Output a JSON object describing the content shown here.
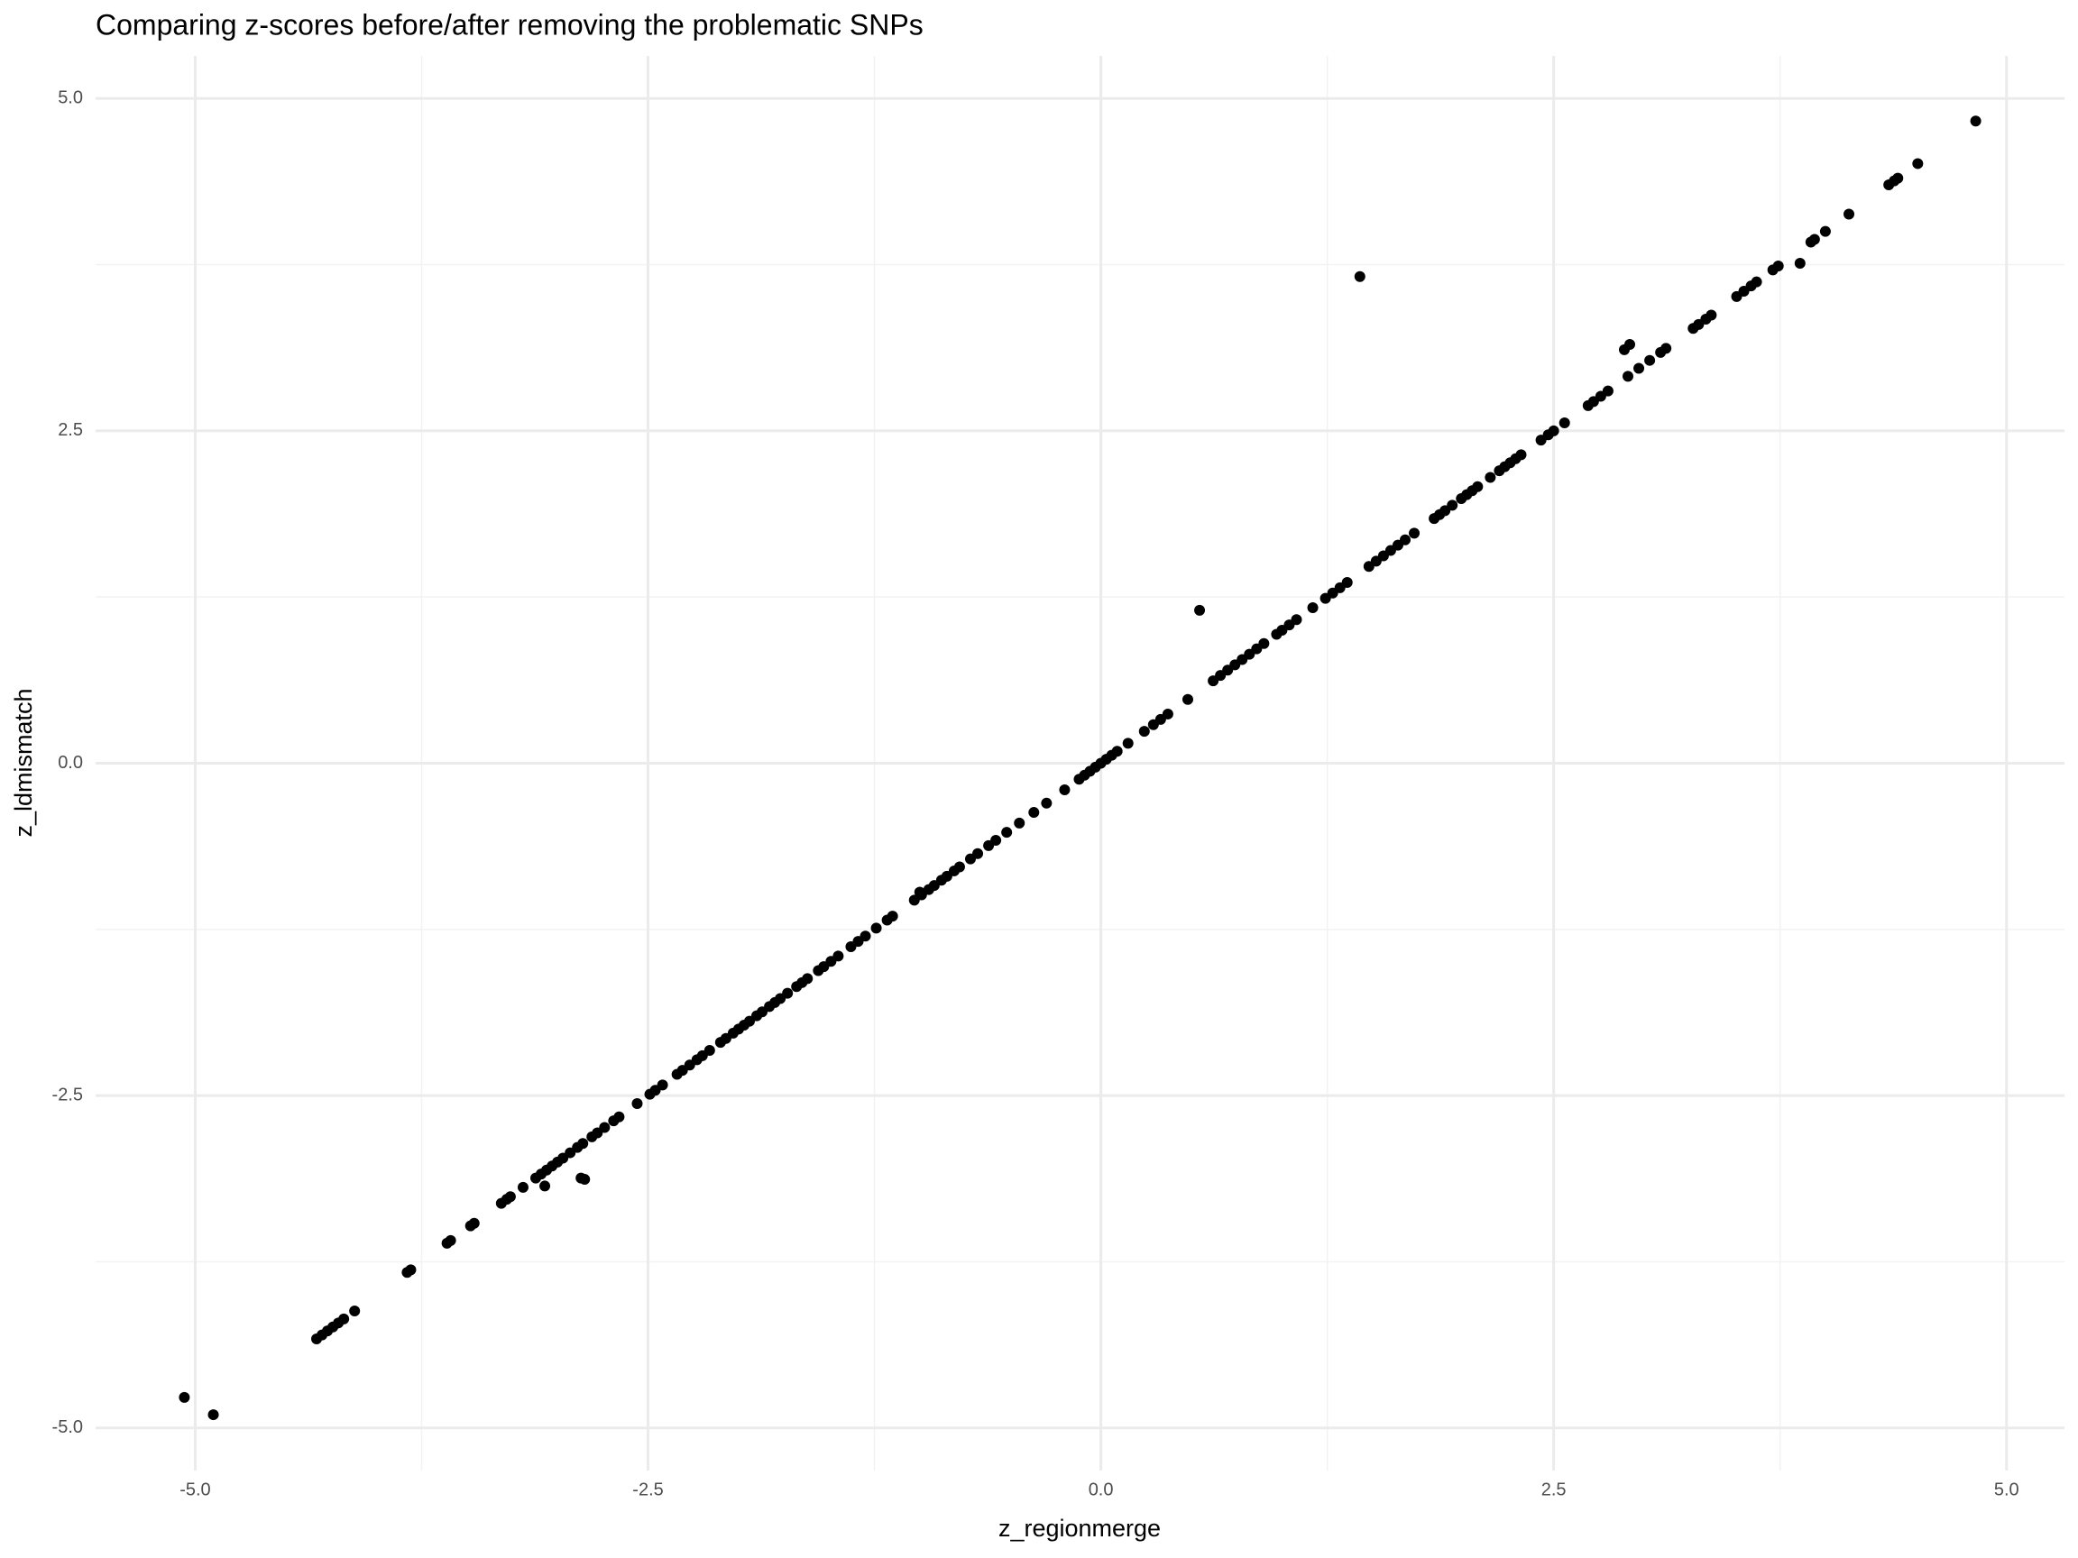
{
  "chart_data": {
    "type": "scatter",
    "title": "Comparing z-scores before/after removing the problematic SNPs",
    "x_label": "z_regionmerge",
    "y_label": "z_ldmismatch",
    "xlim": [
      -5.55,
      5.32
    ],
    "ylim": [
      -5.32,
      5.32
    ],
    "xticks": [
      {
        "value": -5,
        "label": "-5.0"
      },
      -2.5,
      {
        "value": 0,
        "label": "0.0"
      },
      2.5,
      {
        "value": 5,
        "label": "5.0"
      }
    ],
    "yticks": [
      {
        "value": -5,
        "label": "-5.0"
      },
      -2.5,
      {
        "value": 0,
        "label": "0.0"
      },
      2.5,
      {
        "value": 5,
        "label": "5.0"
      }
    ],
    "grid": true,
    "minor_grid": true,
    "color": "#000000",
    "x": [
      -4.33,
      -4.3,
      -4.27,
      -4.24,
      -4.21,
      -4.18,
      -4.12,
      -3.83,
      -3.81,
      -3.61,
      -3.59,
      -3.48,
      -3.46,
      -3.31,
      -3.28,
      -3.26,
      -3.19,
      -3.12,
      -3.09,
      -3.06,
      -3.03,
      -3.0,
      -2.97,
      -2.93,
      -2.89,
      -2.86,
      -2.81,
      -2.78,
      -2.74,
      -2.69,
      -2.66,
      -2.56,
      -2.49,
      -2.46,
      -2.42,
      -2.34,
      -2.31,
      -2.27,
      -2.23,
      -2.2,
      -2.16,
      -2.1,
      -2.07,
      -2.03,
      -2.0,
      -1.97,
      -1.94,
      -1.9,
      -1.87,
      -1.83,
      -1.8,
      -1.77,
      -1.73,
      -1.68,
      -1.65,
      -1.62,
      -1.56,
      -1.53,
      -1.49,
      -1.45,
      -1.38,
      -1.34,
      -1.3,
      -1.24,
      -1.18,
      -1.15,
      -1.03,
      -0.99,
      -0.95,
      -0.92,
      -0.88,
      -0.85,
      -0.81,
      -0.78,
      -0.72,
      -0.68,
      -0.62,
      -0.58,
      -0.52,
      -0.45,
      -0.37,
      -0.3,
      -0.2,
      -0.12,
      -0.09,
      -0.06,
      -0.03,
      0.0,
      0.03,
      0.06,
      0.09,
      0.15,
      0.24,
      0.29,
      0.33,
      0.37,
      0.48,
      0.62,
      0.66,
      0.7,
      0.74,
      0.78,
      0.82,
      0.86,
      0.9,
      0.97,
      1.0,
      1.04,
      1.08,
      1.17,
      1.24,
      1.28,
      1.32,
      1.36,
      1.48,
      1.52,
      1.56,
      1.6,
      1.64,
      1.68,
      1.73,
      1.84,
      1.87,
      1.9,
      1.94,
      1.99,
      2.02,
      2.05,
      2.08,
      2.15,
      2.2,
      2.23,
      2.26,
      2.29,
      2.32,
      2.43,
      2.47,
      2.5,
      2.56,
      2.69,
      2.72,
      2.76,
      2.8,
      2.91,
      2.97,
      3.03,
      3.09,
      3.12,
      3.27,
      3.3,
      3.34,
      3.37,
      3.51,
      3.55,
      3.59,
      3.62,
      3.71,
      3.74,
      3.92,
      3.94,
      4.13,
      4.35,
      4.38,
      4.4,
      4.51,
      4.83,
      -5.06,
      -4.9,
      1.43,
      0.545,
      -2.87,
      -2.85,
      -3.07,
      2.92,
      2.89,
      3.86,
      4.0,
      -1.0
    ],
    "y": [
      -4.33,
      -4.3,
      -4.27,
      -4.24,
      -4.21,
      -4.18,
      -4.12,
      -3.83,
      -3.81,
      -3.61,
      -3.59,
      -3.48,
      -3.46,
      -3.31,
      -3.28,
      -3.26,
      -3.19,
      -3.12,
      -3.09,
      -3.06,
      -3.03,
      -3.0,
      -2.97,
      -2.93,
      -2.89,
      -2.86,
      -2.81,
      -2.78,
      -2.74,
      -2.69,
      -2.66,
      -2.56,
      -2.49,
      -2.46,
      -2.42,
      -2.34,
      -2.31,
      -2.27,
      -2.23,
      -2.2,
      -2.16,
      -2.1,
      -2.07,
      -2.03,
      -2.0,
      -1.97,
      -1.94,
      -1.9,
      -1.87,
      -1.83,
      -1.8,
      -1.77,
      -1.73,
      -1.68,
      -1.65,
      -1.62,
      -1.56,
      -1.53,
      -1.49,
      -1.45,
      -1.38,
      -1.34,
      -1.3,
      -1.24,
      -1.18,
      -1.15,
      -1.03,
      -0.99,
      -0.95,
      -0.92,
      -0.88,
      -0.85,
      -0.81,
      -0.78,
      -0.72,
      -0.68,
      -0.62,
      -0.58,
      -0.52,
      -0.45,
      -0.37,
      -0.3,
      -0.2,
      -0.12,
      -0.09,
      -0.06,
      -0.03,
      0.0,
      0.03,
      0.06,
      0.09,
      0.15,
      0.24,
      0.29,
      0.33,
      0.37,
      0.48,
      0.62,
      0.66,
      0.7,
      0.74,
      0.78,
      0.82,
      0.86,
      0.9,
      0.97,
      1.0,
      1.04,
      1.08,
      1.17,
      1.24,
      1.28,
      1.32,
      1.36,
      1.48,
      1.52,
      1.56,
      1.6,
      1.64,
      1.68,
      1.73,
      1.84,
      1.87,
      1.9,
      1.94,
      1.99,
      2.02,
      2.05,
      2.08,
      2.15,
      2.2,
      2.23,
      2.26,
      2.29,
      2.32,
      2.43,
      2.47,
      2.5,
      2.56,
      2.69,
      2.72,
      2.76,
      2.8,
      2.91,
      2.97,
      3.03,
      3.09,
      3.12,
      3.27,
      3.3,
      3.34,
      3.37,
      3.51,
      3.55,
      3.59,
      3.62,
      3.71,
      3.74,
      3.92,
      3.94,
      4.13,
      4.35,
      4.38,
      4.4,
      4.51,
      4.83,
      -4.77,
      -4.9,
      3.66,
      1.15,
      -3.12,
      -3.13,
      -3.18,
      3.15,
      3.11,
      3.76,
      4.0,
      -0.97
    ]
  }
}
